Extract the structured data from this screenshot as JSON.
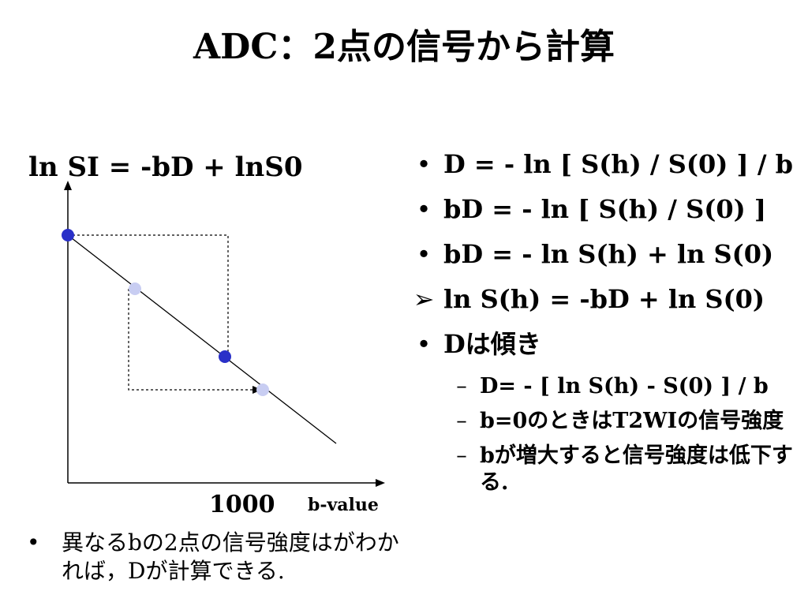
{
  "title": "ADC：2点の信号から計算",
  "equation": "ln SI = -bD + lnS0",
  "plot": {
    "tick_label": "1000",
    "xaxis_label": "b-value",
    "line_color": "#000000",
    "point_colors": {
      "dark": "#2a30c8",
      "light": "#c8cdf2"
    }
  },
  "note": {
    "bullet": "•",
    "text": "異なるbの2点の信号強度はがわかれば，Dが計算できる."
  },
  "bullets": [
    {
      "marker": "•",
      "text": "D = - ln [ S(h) / S(0) ] / b"
    },
    {
      "marker": "•",
      "text": "bD = - ln [ S(h) / S(0) ]"
    },
    {
      "marker": "•",
      "text": "bD = - ln S(h) + ln S(0)"
    },
    {
      "marker": "➢",
      "text": "ln S(h) = -bD + ln S(0)"
    },
    {
      "marker": "•",
      "text": "Dは傾き"
    }
  ],
  "subbullets": [
    {
      "marker": "–",
      "text": "D= - [ ln S(h) - S(0) ] / b"
    },
    {
      "marker": "–",
      "text": "b=0のときはT2WIの信号強度"
    },
    {
      "marker": "–",
      "text": "bが増大すると信号強度は低下する."
    }
  ]
}
